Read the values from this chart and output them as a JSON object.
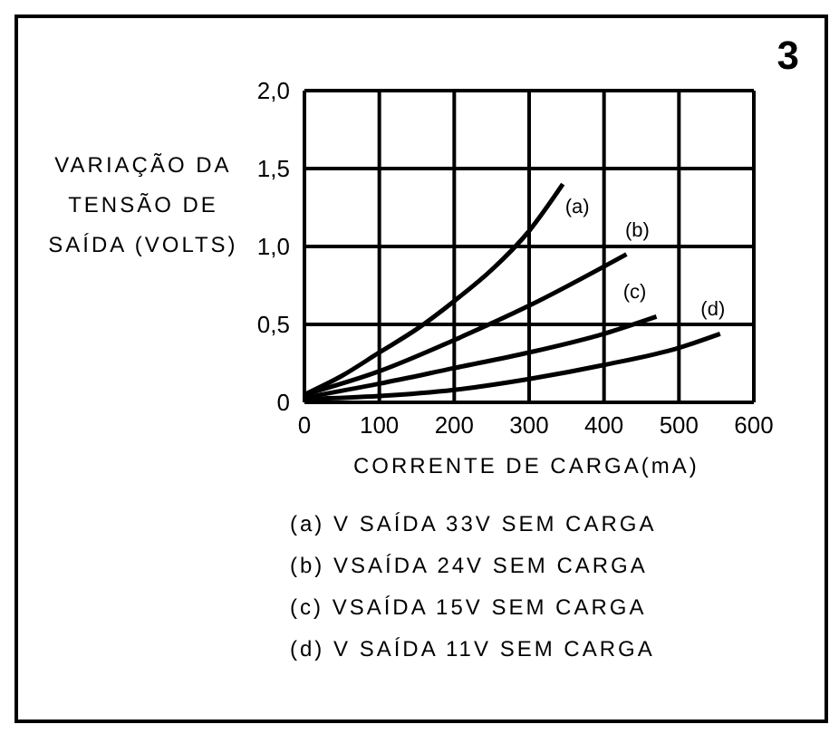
{
  "chart_data": {
    "type": "line",
    "ylabel": "VARIAÇÃO DA TENSÃO DE SAÍDA (VOLTS)",
    "xlabel": "CORRENTE DE CARGA(mA)",
    "annotations": [
      "3",
      "(a) V SAÍDA 33V SEM CARGA",
      "(b) VSAÍDA 24V SEM CARGA",
      "(c) VSAÍDA 15V SEM CARGA",
      "(d) V SAÍDA 11V SEM CARGA"
    ],
    "xlim": [
      0,
      600
    ],
    "xticks": [
      0,
      100,
      200,
      300,
      400,
      500,
      600
    ],
    "ylim": [
      0,
      2
    ],
    "yticks": [
      {
        "value": 0,
        "label": "0"
      },
      {
        "value": 0.5,
        "label": "0,5"
      },
      {
        "value": 1,
        "label": "1,0"
      },
      {
        "value": 1.5,
        "label": "1,5"
      },
      {
        "value": 2,
        "label": "2,0"
      }
    ],
    "grid": true,
    "legend": false,
    "marker": "none",
    "line_style": "solid",
    "series": [
      {
        "name": "(a)",
        "color": "#000000",
        "x": [
          0,
          50,
          100,
          150,
          200,
          250,
          300,
          345
        ],
        "values": [
          0.05,
          0.17,
          0.32,
          0.47,
          0.65,
          0.85,
          1.1,
          1.4
        ]
      },
      {
        "name": "(b)",
        "color": "#000000",
        "x": [
          0,
          100,
          200,
          300,
          430
        ],
        "values": [
          0.05,
          0.2,
          0.4,
          0.62,
          0.95
        ]
      },
      {
        "name": "(c)",
        "color": "#000000",
        "x": [
          0,
          100,
          200,
          300,
          400,
          470
        ],
        "values": [
          0.03,
          0.12,
          0.22,
          0.32,
          0.44,
          0.55
        ]
      },
      {
        "name": "(d)",
        "color": "#000000",
        "x": [
          0,
          100,
          200,
          300,
          400,
          500,
          555
        ],
        "values": [
          0.02,
          0.04,
          0.08,
          0.15,
          0.24,
          0.35,
          0.44
        ]
      }
    ]
  }
}
